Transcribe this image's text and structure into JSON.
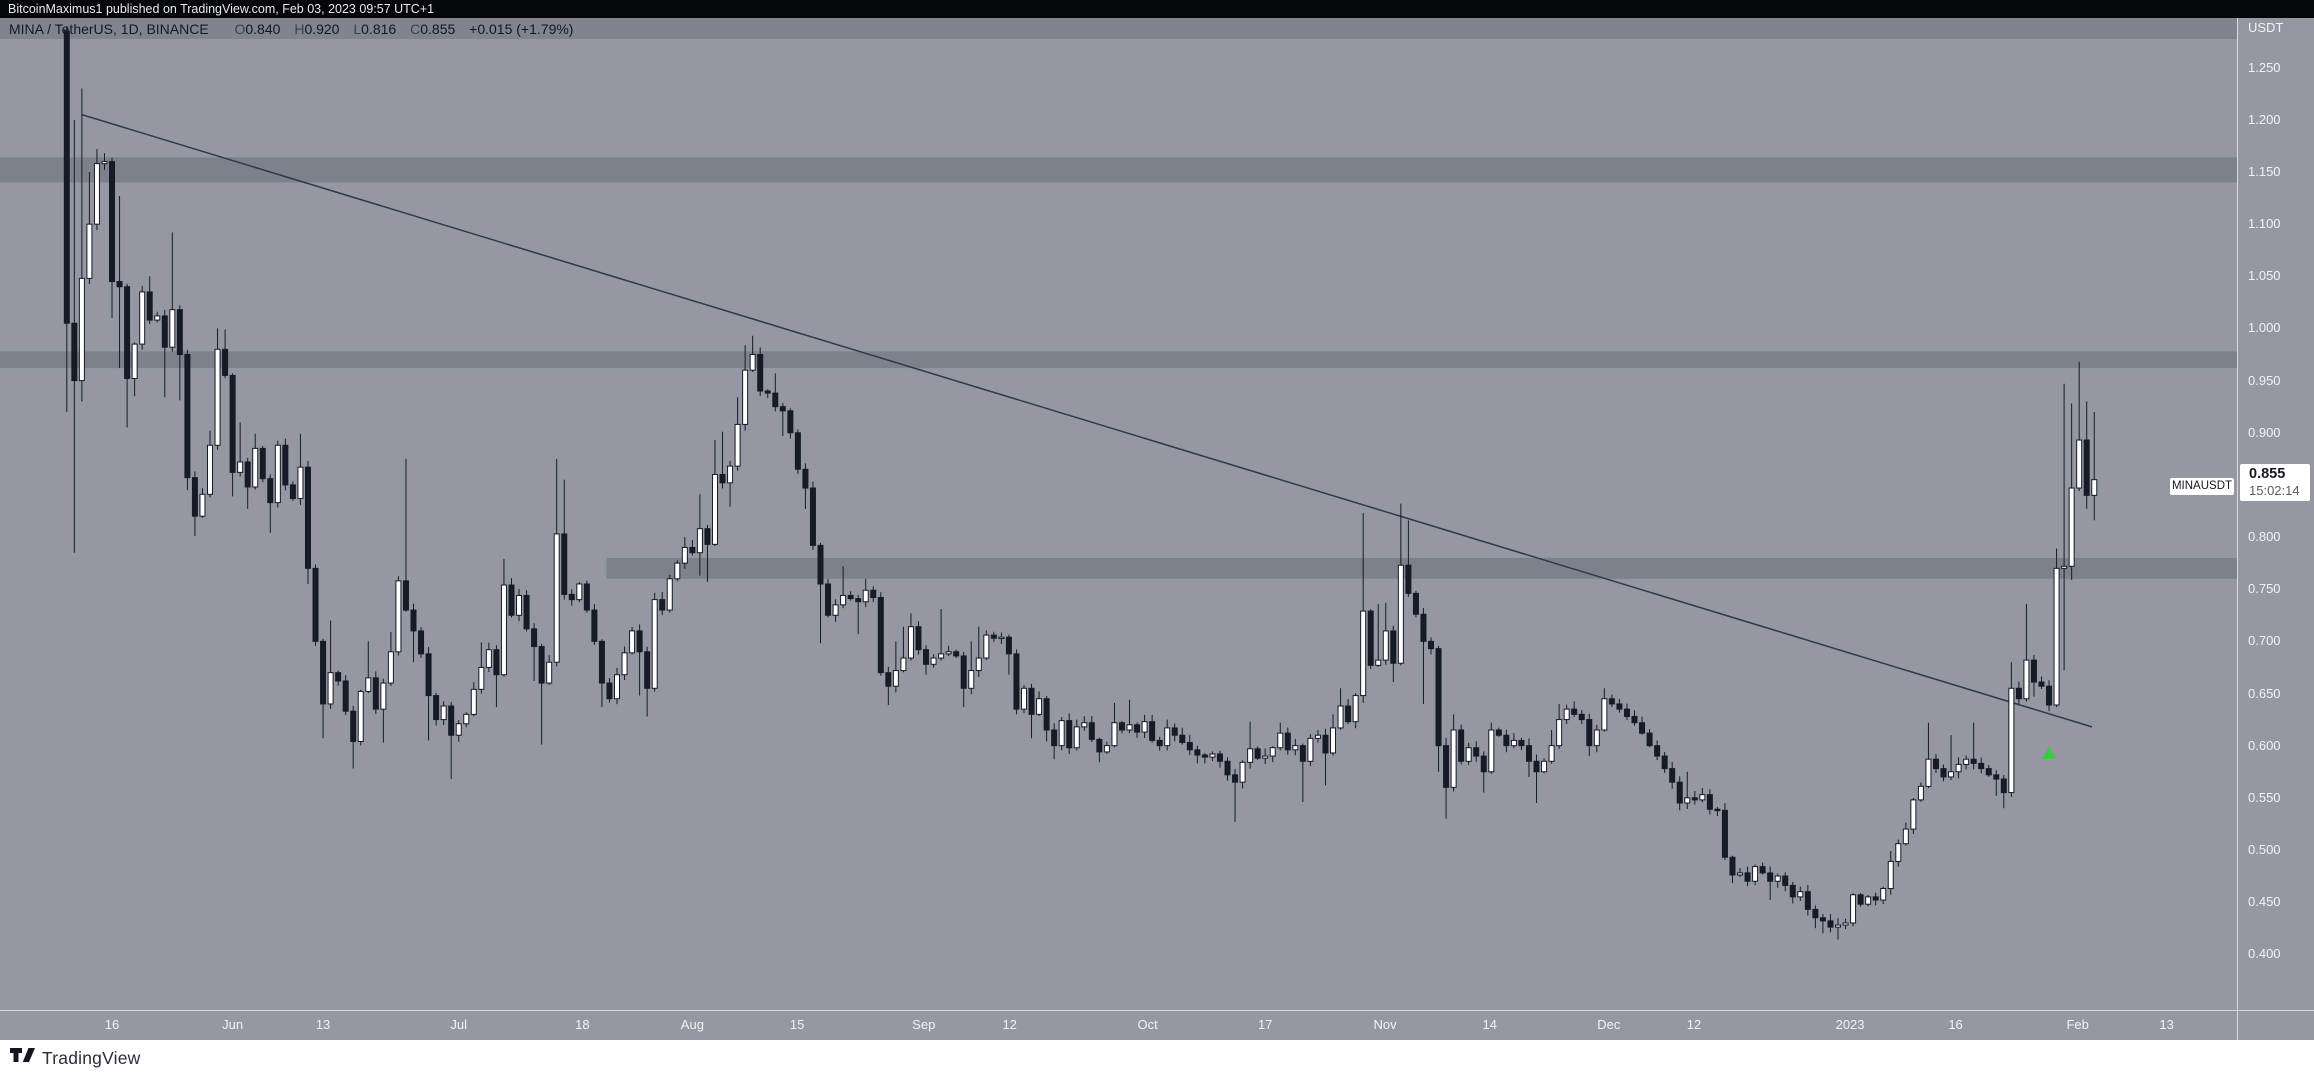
{
  "header": {
    "text": "BitcoinMaximus1 published on TradingView.com, Feb 03, 2023 09:57 UTC+1"
  },
  "legend": {
    "title": "MINA / TetherUS, 1D, BINANCE",
    "open_label": "O",
    "open": "0.840",
    "high_label": "H",
    "high": "0.920",
    "low_label": "L",
    "low": "0.816",
    "close_label": "C",
    "close": "0.855",
    "change": "+0.015 (+1.79%)"
  },
  "price_axis": {
    "currency": "USDT",
    "ticks": [
      "1.250",
      "1.200",
      "1.150",
      "1.100",
      "1.050",
      "1.000",
      "0.950",
      "0.900",
      "0.800",
      "0.750",
      "0.700",
      "0.650",
      "0.600",
      "0.550",
      "0.500",
      "0.450",
      "0.400"
    ],
    "last_price": "0.855",
    "countdown": "15:02:14",
    "symbol_flag": "MINAUSDT"
  },
  "time_axis": {
    "ticks": [
      {
        "label": "16",
        "day": 6
      },
      {
        "label": "Jun",
        "day": 22
      },
      {
        "label": "13",
        "day": 34
      },
      {
        "label": "Jul",
        "day": 52
      },
      {
        "label": "18",
        "day": 68.4
      },
      {
        "label": "Aug",
        "day": 83
      },
      {
        "label": "15",
        "day": 96.9
      },
      {
        "label": "Sep",
        "day": 113.7
      },
      {
        "label": "12",
        "day": 125.1
      },
      {
        "label": "Oct",
        "day": 143.4
      },
      {
        "label": "17",
        "day": 159
      },
      {
        "label": "Nov",
        "day": 174.9
      },
      {
        "label": "14",
        "day": 188.8
      },
      {
        "label": "Dec",
        "day": 204.6
      },
      {
        "label": "12",
        "day": 215.9
      },
      {
        "label": "2023",
        "day": 236.6
      },
      {
        "label": "16",
        "day": 250.6
      },
      {
        "label": "Feb",
        "day": 266.8
      },
      {
        "label": "13",
        "day": 278.6
      }
    ]
  },
  "footer": {
    "brand": "TradingView"
  },
  "colors": {
    "background": "#9598a2",
    "candle_up": "#ffffff",
    "candle_down": "#171b26",
    "outline": "#171b26",
    "band_fill": "rgba(86,92,106,0.38)",
    "trendline": "#333845",
    "marker_green": "#35cc3f",
    "axis_text": "#f1f2f5"
  },
  "chart_data": {
    "type": "candlestick",
    "title": "MINA / TetherUS, 1D, BINANCE",
    "symbol": "MINAUSDT",
    "interval": "1D",
    "exchange": "BINANCE",
    "ylabel": "USDT",
    "ylim": [
      0.38,
      1.3
    ],
    "price_step": 0.05,
    "last_ohlc": {
      "open": 0.84,
      "high": 0.92,
      "low": 0.816,
      "close": 0.855,
      "change": "+0.015 (+1.79%)"
    },
    "first_open": 1.285,
    "note": "daily candles May 2022 - Feb 03 2023; entries are [close, highSpike(0=auto), lowSpike(0=auto)] per day",
    "candles": [
      [
        1.005,
        1.29,
        0.92
      ],
      [
        0.95,
        1.2,
        0.785
      ],
      [
        1.048,
        1.23,
        0.93
      ],
      [
        1.1,
        1.15,
        0
      ],
      [
        1.158,
        1.172,
        0
      ],
      [
        1.16,
        1.168,
        0
      ],
      [
        1.045,
        0,
        1.01
      ],
      [
        1.04,
        1.127,
        0.962
      ],
      [
        0.952,
        0,
        0.905
      ],
      [
        0.985,
        0,
        0.935
      ],
      [
        1.035,
        0,
        0
      ],
      [
        1.008,
        1.05,
        0
      ],
      [
        1.012,
        0,
        0
      ],
      [
        0.982,
        0,
        0.934
      ],
      [
        1.018,
        1.092,
        0
      ],
      [
        0.975,
        0,
        0.931
      ],
      [
        0.857,
        0,
        0.845
      ],
      [
        0.82,
        0,
        0.801
      ],
      [
        0.841,
        0,
        0
      ],
      [
        0.888,
        0.902,
        0
      ],
      [
        0.98,
        1.0,
        0
      ],
      [
        0.955,
        0.999,
        0
      ],
      [
        0.862,
        0,
        0.839
      ],
      [
        0.872,
        0.91,
        0
      ],
      [
        0.848,
        0,
        0.827
      ],
      [
        0.885,
        0.899,
        0
      ],
      [
        0.856,
        0,
        0
      ],
      [
        0.833,
        0,
        0.804
      ],
      [
        0.888,
        0,
        0
      ],
      [
        0.85,
        0,
        0
      ],
      [
        0.837,
        0,
        0
      ],
      [
        0.867,
        0.899,
        0
      ],
      [
        0.77,
        0,
        0.755
      ],
      [
        0.7,
        0,
        0
      ],
      [
        0.64,
        0,
        0.607
      ],
      [
        0.67,
        0.72,
        0
      ],
      [
        0.662,
        0,
        0
      ],
      [
        0.633,
        0,
        0
      ],
      [
        0.604,
        0,
        0.578
      ],
      [
        0.652,
        0,
        0
      ],
      [
        0.665,
        0.7,
        0
      ],
      [
        0.635,
        0,
        0
      ],
      [
        0.66,
        0,
        0.603
      ],
      [
        0.69,
        0.709,
        0
      ],
      [
        0.758,
        0,
        0
      ],
      [
        0.73,
        0.875,
        0
      ],
      [
        0.71,
        0,
        0.68
      ],
      [
        0.688,
        0,
        0
      ],
      [
        0.648,
        0,
        0.605
      ],
      [
        0.625,
        0,
        0
      ],
      [
        0.638,
        0,
        0
      ],
      [
        0.61,
        0,
        0.568
      ],
      [
        0.621,
        0,
        0
      ],
      [
        0.63,
        0,
        0
      ],
      [
        0.654,
        0,
        0
      ],
      [
        0.675,
        0.699,
        0
      ],
      [
        0.692,
        0,
        0
      ],
      [
        0.668,
        0,
        0.637
      ],
      [
        0.754,
        0.779,
        0
      ],
      [
        0.725,
        0,
        0
      ],
      [
        0.744,
        0,
        0
      ],
      [
        0.712,
        0,
        0
      ],
      [
        0.695,
        0,
        0.662
      ],
      [
        0.66,
        0,
        0.601
      ],
      [
        0.68,
        0,
        0
      ],
      [
        0.803,
        0.875,
        0.676
      ],
      [
        0.745,
        0.855,
        0
      ],
      [
        0.74,
        0,
        0
      ],
      [
        0.755,
        0,
        0
      ],
      [
        0.73,
        0,
        0
      ],
      [
        0.7,
        0,
        0
      ],
      [
        0.66,
        0,
        0.637
      ],
      [
        0.645,
        0,
        0
      ],
      [
        0.668,
        0,
        0
      ],
      [
        0.689,
        0,
        0
      ],
      [
        0.71,
        0,
        0
      ],
      [
        0.69,
        0,
        0.648
      ],
      [
        0.655,
        0,
        0.628
      ],
      [
        0.74,
        0,
        0
      ],
      [
        0.73,
        0,
        0
      ],
      [
        0.76,
        0,
        0
      ],
      [
        0.775,
        0,
        0
      ],
      [
        0.79,
        0.8,
        0
      ],
      [
        0.785,
        0,
        0
      ],
      [
        0.808,
        0.841,
        0.763
      ],
      [
        0.793,
        0,
        0.757
      ],
      [
        0.86,
        0.893,
        0
      ],
      [
        0.852,
        0.901,
        0
      ],
      [
        0.868,
        0,
        0.829
      ],
      [
        0.908,
        0.934,
        0
      ],
      [
        0.96,
        0.984,
        0
      ],
      [
        0.975,
        0.993,
        0
      ],
      [
        0.94,
        0,
        0
      ],
      [
        0.938,
        0,
        0
      ],
      [
        0.925,
        0.957,
        0
      ],
      [
        0.921,
        0,
        0.897
      ],
      [
        0.9,
        0,
        0
      ],
      [
        0.865,
        0,
        0
      ],
      [
        0.847,
        0,
        0.827
      ],
      [
        0.792,
        0,
        0
      ],
      [
        0.755,
        0,
        0.698
      ],
      [
        0.725,
        0,
        0
      ],
      [
        0.735,
        0,
        0
      ],
      [
        0.744,
        0.772,
        0
      ],
      [
        0.741,
        0,
        0
      ],
      [
        0.738,
        0,
        0.707
      ],
      [
        0.749,
        0.76,
        0
      ],
      [
        0.742,
        0,
        0
      ],
      [
        0.67,
        0,
        0
      ],
      [
        0.657,
        0,
        0.639
      ],
      [
        0.672,
        0.7,
        0
      ],
      [
        0.684,
        0.714,
        0
      ],
      [
        0.714,
        0.727,
        0
      ],
      [
        0.692,
        0,
        0
      ],
      [
        0.678,
        0,
        0.668
      ],
      [
        0.684,
        0,
        0
      ],
      [
        0.688,
        0.731,
        0
      ],
      [
        0.69,
        0,
        0
      ],
      [
        0.686,
        0,
        0
      ],
      [
        0.655,
        0,
        0.637
      ],
      [
        0.672,
        0.7,
        0
      ],
      [
        0.684,
        0.714,
        0
      ],
      [
        0.706,
        0,
        0
      ],
      [
        0.703,
        0,
        0
      ],
      [
        0.704,
        0,
        0
      ],
      [
        0.688,
        0,
        0.668
      ],
      [
        0.635,
        0,
        0.63
      ],
      [
        0.655,
        0,
        0
      ],
      [
        0.63,
        0,
        0.607
      ],
      [
        0.645,
        0.652,
        0
      ],
      [
        0.615,
        0,
        0.604
      ],
      [
        0.6,
        0,
        0.587
      ],
      [
        0.624,
        0,
        0
      ],
      [
        0.598,
        0,
        0
      ],
      [
        0.618,
        0.625,
        0
      ],
      [
        0.622,
        0,
        0
      ],
      [
        0.606,
        0,
        0
      ],
      [
        0.594,
        0,
        0.584
      ],
      [
        0.6,
        0,
        0
      ],
      [
        0.622,
        0.641,
        0
      ],
      [
        0.615,
        0,
        0
      ],
      [
        0.62,
        0.644,
        0
      ],
      [
        0.613,
        0,
        0
      ],
      [
        0.623,
        0,
        0
      ],
      [
        0.605,
        0,
        0
      ],
      [
        0.6,
        0,
        0
      ],
      [
        0.617,
        0.625,
        0
      ],
      [
        0.61,
        0,
        0
      ],
      [
        0.603,
        0,
        0
      ],
      [
        0.596,
        0,
        0
      ],
      [
        0.591,
        0,
        0.583
      ],
      [
        0.589,
        0,
        0
      ],
      [
        0.592,
        0,
        0
      ],
      [
        0.585,
        0,
        0
      ],
      [
        0.572,
        0,
        0
      ],
      [
        0.565,
        0,
        0.527
      ],
      [
        0.584,
        0,
        0
      ],
      [
        0.597,
        0.623,
        0
      ],
      [
        0.588,
        0,
        0
      ],
      [
        0.59,
        0,
        0
      ],
      [
        0.598,
        0,
        0
      ],
      [
        0.612,
        0.622,
        0
      ],
      [
        0.596,
        0,
        0
      ],
      [
        0.6,
        0,
        0
      ],
      [
        0.585,
        0,
        0.546
      ],
      [
        0.607,
        0,
        0
      ],
      [
        0.61,
        0,
        0
      ],
      [
        0.593,
        0,
        0.562
      ],
      [
        0.617,
        0.63,
        0
      ],
      [
        0.638,
        0.655,
        0
      ],
      [
        0.623,
        0,
        0
      ],
      [
        0.648,
        0,
        0
      ],
      [
        0.729,
        0.823,
        0.641
      ],
      [
        0.677,
        0,
        0
      ],
      [
        0.682,
        0.736,
        0
      ],
      [
        0.71,
        0.737,
        0
      ],
      [
        0.679,
        0,
        0.661
      ],
      [
        0.773,
        0.832,
        0
      ],
      [
        0.746,
        0.816,
        0
      ],
      [
        0.726,
        0,
        0
      ],
      [
        0.7,
        0,
        0.64
      ],
      [
        0.693,
        0,
        0
      ],
      [
        0.6,
        0,
        0.575
      ],
      [
        0.56,
        0,
        0.53
      ],
      [
        0.615,
        0.63,
        0
      ],
      [
        0.585,
        0,
        0
      ],
      [
        0.598,
        0,
        0
      ],
      [
        0.59,
        0,
        0
      ],
      [
        0.575,
        0,
        0.555
      ],
      [
        0.615,
        0,
        0
      ],
      [
        0.61,
        0,
        0
      ],
      [
        0.6,
        0,
        0
      ],
      [
        0.605,
        0,
        0
      ],
      [
        0.6,
        0,
        0
      ],
      [
        0.585,
        0,
        0.57
      ],
      [
        0.575,
        0,
        0.545
      ],
      [
        0.585,
        0,
        0
      ],
      [
        0.6,
        0.615,
        0
      ],
      [
        0.625,
        0.64,
        0
      ],
      [
        0.635,
        0,
        0
      ],
      [
        0.63,
        0,
        0
      ],
      [
        0.625,
        0,
        0
      ],
      [
        0.6,
        0,
        0.59
      ],
      [
        0.615,
        0,
        0
      ],
      [
        0.645,
        0.655,
        0
      ],
      [
        0.64,
        0,
        0
      ],
      [
        0.635,
        0,
        0
      ],
      [
        0.628,
        0,
        0
      ],
      [
        0.622,
        0,
        0
      ],
      [
        0.612,
        0,
        0
      ],
      [
        0.6,
        0,
        0
      ],
      [
        0.59,
        0,
        0
      ],
      [
        0.578,
        0,
        0
      ],
      [
        0.565,
        0,
        0
      ],
      [
        0.545,
        0,
        0.538
      ],
      [
        0.55,
        0.575,
        0
      ],
      [
        0.548,
        0,
        0
      ],
      [
        0.553,
        0,
        0
      ],
      [
        0.539,
        0,
        0
      ],
      [
        0.538,
        0,
        0
      ],
      [
        0.493,
        0,
        0
      ],
      [
        0.476,
        0,
        0.468
      ],
      [
        0.478,
        0,
        0
      ],
      [
        0.47,
        0,
        0
      ],
      [
        0.484,
        0,
        0
      ],
      [
        0.478,
        0,
        0
      ],
      [
        0.47,
        0,
        0.452
      ],
      [
        0.475,
        0,
        0
      ],
      [
        0.466,
        0,
        0
      ],
      [
        0.455,
        0,
        0
      ],
      [
        0.46,
        0,
        0
      ],
      [
        0.443,
        0,
        0
      ],
      [
        0.435,
        0,
        0.425
      ],
      [
        0.432,
        0,
        0.42
      ],
      [
        0.426,
        0,
        0
      ],
      [
        0.428,
        0,
        0.414
      ],
      [
        0.43,
        0,
        0
      ],
      [
        0.457,
        0,
        0
      ],
      [
        0.448,
        0,
        0
      ],
      [
        0.455,
        0,
        0
      ],
      [
        0.452,
        0,
        0
      ],
      [
        0.463,
        0,
        0
      ],
      [
        0.489,
        0.499,
        0
      ],
      [
        0.506,
        0,
        0
      ],
      [
        0.52,
        0,
        0
      ],
      [
        0.548,
        0,
        0
      ],
      [
        0.561,
        0,
        0
      ],
      [
        0.587,
        0.622,
        0
      ],
      [
        0.578,
        0,
        0
      ],
      [
        0.57,
        0,
        0
      ],
      [
        0.575,
        0.61,
        0
      ],
      [
        0.582,
        0,
        0
      ],
      [
        0.587,
        0,
        0
      ],
      [
        0.583,
        0.622,
        0
      ],
      [
        0.578,
        0,
        0
      ],
      [
        0.572,
        0,
        0
      ],
      [
        0.568,
        0,
        0.552
      ],
      [
        0.555,
        0,
        0.54
      ],
      [
        0.655,
        0.68,
        0
      ],
      [
        0.645,
        0,
        0
      ],
      [
        0.682,
        0.736,
        0
      ],
      [
        0.661,
        0,
        0.647
      ],
      [
        0.657,
        0,
        0
      ],
      [
        0.639,
        0,
        0.633
      ],
      [
        0.77,
        0.789,
        0
      ],
      [
        0.772,
        0.947,
        0.672
      ],
      [
        0.847,
        0.928,
        0.759
      ],
      [
        0.893,
        0.968,
        0
      ],
      [
        0.84,
        0.93,
        0.827
      ],
      [
        0.855,
        0.92,
        0.816
      ]
    ],
    "bands": [
      {
        "top": 1.164,
        "bottom": 1.14,
        "from_day": null,
        "label": "resistance-zone-1.15"
      },
      {
        "top": 0.978,
        "bottom": 0.962,
        "from_day": null,
        "label": "resistance-zone-0.97"
      },
      {
        "top": 0.78,
        "bottom": 0.76,
        "from_day": 71.6,
        "label": "resistance-zone-0.77"
      }
    ],
    "trendline": {
      "from_day": 2,
      "from_price": 1.205,
      "to_day": 268.7,
      "to_price": 0.618
    },
    "marker": {
      "day": 263,
      "price": 0.599,
      "shape": "triangle-up",
      "color": "#35cc3f"
    }
  }
}
